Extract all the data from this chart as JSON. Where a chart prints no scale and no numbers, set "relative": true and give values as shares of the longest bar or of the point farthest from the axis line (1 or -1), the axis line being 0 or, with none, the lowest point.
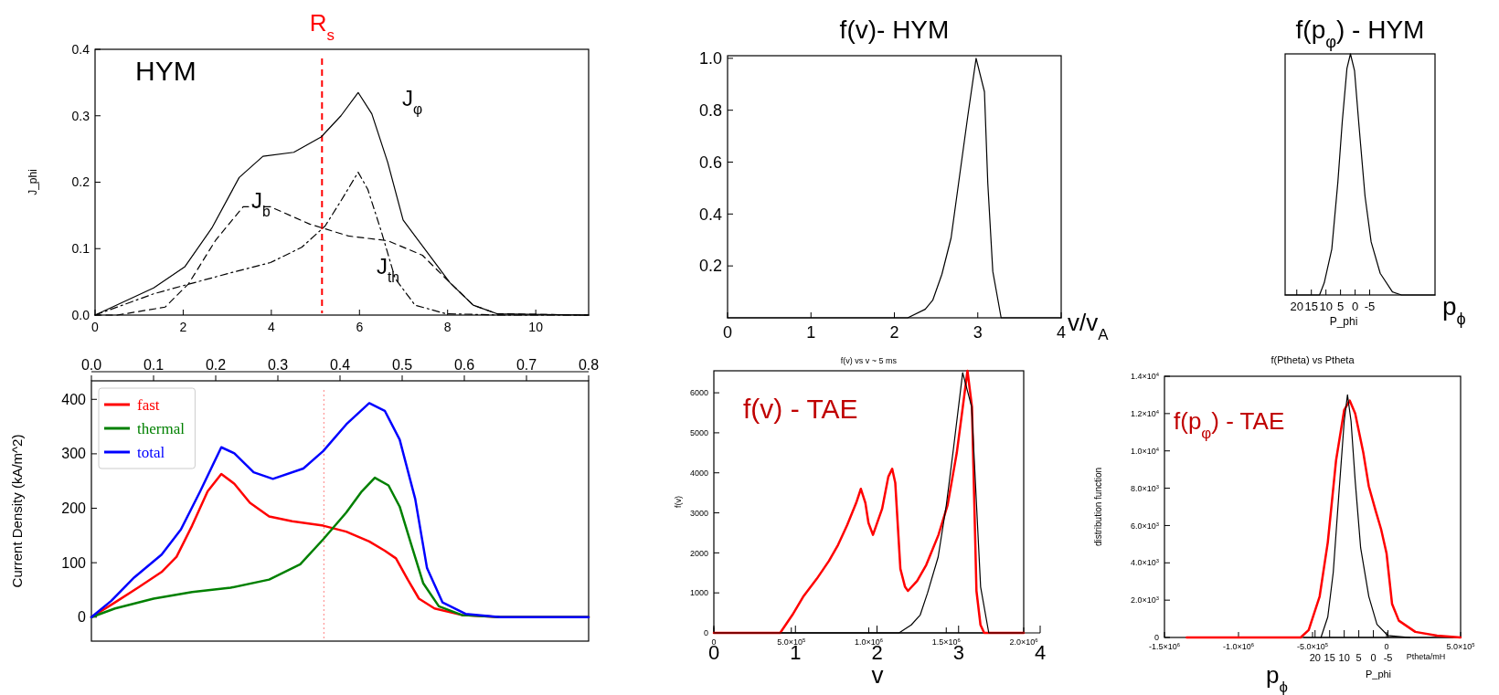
{
  "chart_data": [
    {
      "type": "line",
      "annotations": [
        "HYM"
      ],
      "ylabel": "J_phi",
      "xlim": [
        0,
        11.2
      ],
      "xticks": [
        0,
        2,
        4,
        6,
        8,
        10
      ],
      "ylim": [
        0,
        0.4
      ],
      "yticks": [
        {
          "value": 0,
          "label": "0.0"
        },
        {
          "value": 0.1,
          "label": "0.1"
        },
        {
          "value": 0.2,
          "label": "0.2"
        },
        {
          "value": 0.3,
          "label": "0.3"
        },
        {
          "value": 0.4,
          "label": "0.4"
        }
      ],
      "grid": false,
      "legend": false,
      "ref_lines": [
        {
          "axis": "x",
          "value": 5.15,
          "label": "R$_{s}$",
          "color": "#ff0000",
          "line_style": "dashed"
        }
      ],
      "series": [
        {
          "name": "J$_{φ}$",
          "color": "#000000",
          "line_style": "solid",
          "x": [
            0,
            1.33,
            2.04,
            2.65,
            3.27,
            3.81,
            4.51,
            5.13,
            5.58,
            5.97,
            6.28,
            6.64,
            6.99,
            7.52,
            8.05,
            8.58,
            9.12,
            11.2
          ],
          "values": [
            0,
            0.041,
            0.073,
            0.131,
            0.207,
            0.239,
            0.245,
            0.268,
            0.3,
            0.335,
            0.303,
            0.23,
            0.143,
            0.096,
            0.049,
            0.015,
            0.002,
            0
          ]
        },
        {
          "name": "J$_{b}$",
          "color": "#000000",
          "line_style": "dashed",
          "x": [
            0,
            0.5,
            1.59,
            2.12,
            2.74,
            3.36,
            3.98,
            4.87,
            5.75,
            6.64,
            7.43,
            8.05,
            8.58,
            9.12,
            11.2
          ],
          "values": [
            0,
            0,
            0.012,
            0.047,
            0.113,
            0.163,
            0.163,
            0.137,
            0.119,
            0.112,
            0.09,
            0.049,
            0.015,
            0.002,
            0
          ]
        },
        {
          "name": "J$_{th}$",
          "color": "#000000",
          "line_style": "dashdot",
          "x": [
            0,
            1.33,
            2.04,
            3.1,
            3.98,
            4.69,
            5.22,
            5.58,
            5.97,
            6.19,
            6.5,
            6.81,
            7.26,
            7.96,
            9.3,
            11.2
          ],
          "values": [
            0,
            0.032,
            0.045,
            0.064,
            0.079,
            0.102,
            0.134,
            0.172,
            0.215,
            0.189,
            0.125,
            0.055,
            0.015,
            0.002,
            0,
            0
          ]
        }
      ]
    },
    {
      "type": "line",
      "ylabel": "Current Density (kA/m^2)",
      "xlim": [
        0,
        0.8
      ],
      "xticks": [
        {
          "value": 0,
          "label": "0.0"
        },
        {
          "value": 0.1,
          "label": "0.1"
        },
        {
          "value": 0.2,
          "label": "0.2"
        },
        {
          "value": 0.3,
          "label": "0.3"
        },
        {
          "value": 0.4,
          "label": "0.4"
        },
        {
          "value": 0.5,
          "label": "0.5"
        },
        {
          "value": 0.6,
          "label": "0.6"
        },
        {
          "value": 0.7,
          "label": "0.7"
        },
        {
          "value": 0.8,
          "label": "0.8"
        }
      ],
      "ylim": [
        -44,
        434
      ],
      "yticks": [
        0,
        100,
        200,
        300,
        400
      ],
      "grid": false,
      "legend": "top left",
      "ref_lines": [
        {
          "axis": "x",
          "value": 0.374,
          "color": "#ff8080",
          "line_style": "dotted"
        }
      ],
      "series": [
        {
          "name": "fast",
          "color": "#ff0000",
          "x": [
            0,
            0.038,
            0.076,
            0.113,
            0.137,
            0.162,
            0.187,
            0.209,
            0.23,
            0.255,
            0.286,
            0.323,
            0.373,
            0.41,
            0.447,
            0.472,
            0.49,
            0.509,
            0.527,
            0.552,
            0.596,
            0.658,
            0.8
          ],
          "values": [
            0,
            27,
            55,
            83,
            111,
            168,
            231,
            263,
            245,
            210,
            185,
            176,
            168,
            157,
            139,
            122,
            108,
            69,
            34,
            16,
            4,
            0,
            0
          ]
        },
        {
          "name": "thermal",
          "color": "#008000",
          "x": [
            0,
            0.038,
            0.1,
            0.162,
            0.224,
            0.286,
            0.336,
            0.373,
            0.41,
            0.435,
            0.456,
            0.478,
            0.496,
            0.515,
            0.534,
            0.559,
            0.596,
            0.658,
            0.8
          ],
          "values": [
            0,
            16,
            34,
            46,
            54,
            69,
            97,
            143,
            192,
            231,
            256,
            242,
            203,
            132,
            62,
            20,
            4,
            0,
            0
          ]
        },
        {
          "name": "total",
          "color": "#0000ff",
          "x": [
            0,
            0.032,
            0.069,
            0.113,
            0.144,
            0.175,
            0.209,
            0.23,
            0.261,
            0.292,
            0.341,
            0.373,
            0.41,
            0.447,
            0.472,
            0.496,
            0.521,
            0.54,
            0.565,
            0.602,
            0.658,
            0.8
          ],
          "values": [
            0,
            30,
            73,
            115,
            161,
            231,
            312,
            301,
            266,
            254,
            273,
            305,
            354,
            393,
            379,
            326,
            217,
            90,
            27,
            6,
            0,
            0
          ]
        }
      ]
    },
    {
      "type": "line",
      "title": "f(v)- HYM",
      "xlabel": "v/v$_{A}$",
      "xlim": [
        0,
        4
      ],
      "xticks": [
        0,
        1,
        2,
        3,
        4
      ],
      "ylim": [
        0,
        1.01
      ],
      "yticks": [
        {
          "value": 0.2,
          "label": "0.2"
        },
        {
          "value": 0.4,
          "label": "0.4"
        },
        {
          "value": 0.6,
          "label": "0.6"
        },
        {
          "value": 0.8,
          "label": "0.8"
        },
        {
          "value": 1,
          "label": "1.0"
        }
      ],
      "grid": false,
      "legend": false,
      "series": [
        {
          "color": "#000000",
          "x": [
            0,
            2.16,
            2.37,
            2.46,
            2.57,
            2.68,
            2.77,
            2.88,
            2.98,
            3.08,
            3.12,
            3.18,
            3.28,
            4
          ],
          "values": [
            0,
            0,
            0.033,
            0.068,
            0.168,
            0.308,
            0.519,
            0.777,
            1,
            0.871,
            0.519,
            0.179,
            0,
            0
          ]
        }
      ]
    },
    {
      "type": "line",
      "title": "f(v) vs v ~ 5 ms",
      "ylabel": "f(v)",
      "x2label": "v",
      "annotations": [
        "f(v) - TAE"
      ],
      "xlim": [
        0,
        2000000
      ],
      "xticks": [
        0,
        {
          "value": 500000,
          "label": "5.0×10$^{5}$"
        },
        {
          "value": 1000000,
          "label": "1.0×10$^{6}$"
        },
        {
          "value": 1500000,
          "label": "1.5×10$^{6}$"
        },
        {
          "value": 2000000,
          "label": "2.0×10$^{6}$"
        }
      ],
      "x2lim": [
        0,
        4
      ],
      "x2ticks": [
        0,
        1,
        2,
        3,
        4
      ],
      "ylim": [
        0,
        6550
      ],
      "yticks": [
        0,
        1000,
        2000,
        3000,
        4000,
        5000,
        6000
      ],
      "grid": false,
      "legend": false,
      "series": [
        {
          "color": "#ff0000",
          "x": [
            0,
            428000,
            507000,
            576000,
            664000,
            743000,
            802000,
            861000,
            919000,
            949000,
            978000,
            998000,
            1027000,
            1086000,
            1126000,
            1151000,
            1171000,
            1204000,
            1234000,
            1253000,
            1312000,
            1371000,
            1450000,
            1509000,
            1568000,
            1607000,
            1637000,
            1666000,
            1695000,
            1721000,
            1745000,
            2000000
          ],
          "values": [
            0,
            0,
            450,
            900,
            1350,
            1800,
            2200,
            2700,
            3250,
            3600,
            3250,
            2750,
            2450,
            3100,
            3900,
            4100,
            3750,
            1600,
            1150,
            1050,
            1300,
            1700,
            2450,
            3200,
            4500,
            5650,
            6550,
            5650,
            1050,
            200,
            0,
            0
          ]
        },
        {
          "color": "#000000",
          "axis": "x2",
          "x": [
            0,
            2.27,
            2.42,
            2.53,
            2.62,
            2.75,
            2.85,
            2.94,
            3.05,
            3.16,
            3.27,
            3.37,
            3.8
          ],
          "values": [
            0,
            0,
            200,
            450,
            1000,
            1900,
            3200,
            4650,
            6500,
            5650,
            1150,
            0,
            0
          ]
        }
      ]
    },
    {
      "type": "line",
      "title": "f(p$_{φ}$) - HYM",
      "xlabel": "P_phi",
      "annotations": [
        "p$_{ϕ}$"
      ],
      "relative": true,
      "xlim": [
        24,
        -27.4
      ],
      "xticks": [
        -5,
        0,
        5,
        10,
        15,
        20
      ],
      "grid": false,
      "legend": false,
      "series": [
        {
          "color": "#000000",
          "x": [
            24,
            12.2,
            10.6,
            8,
            5.9,
            4.4,
            2.8,
            1.6,
            0.2,
            -1.35,
            -3.4,
            -5.5,
            -8.6,
            -12.8,
            -15.9,
            -27.4
          ],
          "values": [
            0,
            0,
            0.05,
            0.19,
            0.47,
            0.72,
            0.94,
            1,
            0.93,
            0.7,
            0.41,
            0.22,
            0.09,
            0.013,
            0,
            0
          ]
        }
      ]
    },
    {
      "type": "line",
      "title": "f(Ptheta) vs Ptheta",
      "ylabel": "distribution function",
      "xlabel": "Ptheta/mH",
      "x2label": "P_phi",
      "annotations": [
        "f(p$_{φ}$) - TAE",
        "p$_{ϕ}$"
      ],
      "xlim": [
        -1500000,
        500000
      ],
      "xticks": [
        {
          "value": -1500000,
          "label": "-1.5×10$^{6}$"
        },
        {
          "value": -1000000,
          "label": "-1.0×10$^{6}$"
        },
        {
          "value": -500000,
          "label": "-5.0×10$^{5}$"
        },
        0,
        {
          "value": 500000,
          "label": "5.0×10$^{5}$"
        }
      ],
      "x2lim": [
        24,
        -27.4
      ],
      "x2ticks": [
        -5,
        0,
        5,
        10,
        15,
        20
      ],
      "ylim": [
        0,
        14000
      ],
      "yticks": [
        0,
        {
          "value": 2000,
          "label": "2.0×10$^{3}$"
        },
        {
          "value": 4000,
          "label": "4.0×10$^{3}$"
        },
        {
          "value": 6000,
          "label": "6.0×10$^{3}$"
        },
        {
          "value": 8000,
          "label": "8.0×10$^{3}$"
        },
        {
          "value": 10000,
          "label": "1.0×10$^{4}$"
        },
        {
          "value": 12000,
          "label": "1.2×10$^{4}$"
        },
        {
          "value": 14000,
          "label": "1.4×10$^{4}$"
        }
      ],
      "grid": false,
      "legend": false,
      "series": [
        {
          "color": "#ff0000",
          "x": [
            -1350000,
            -580000,
            -526000,
            -452000,
            -397000,
            -341000,
            -286000,
            -249000,
            -212000,
            -157000,
            -120000,
            -74000,
            -37000,
            0,
            37000,
            83000,
            194000,
            341000,
            500000
          ],
          "values": [
            0,
            0,
            400,
            2200,
            5100,
            9500,
            12200,
            12700,
            12000,
            9900,
            8100,
            6800,
            5800,
            4500,
            1800,
            900,
            300,
            100,
            0
          ]
        },
        {
          "color": "#000000",
          "x": [
            -443000,
            -397000,
            -360000,
            -323000,
            -286000,
            -264000,
            -240000,
            -212000,
            -175000,
            -120000,
            -65000,
            9000,
            157000
          ],
          "values": [
            0,
            1100,
            3500,
            7600,
            11600,
            13000,
            11600,
            8400,
            4800,
            2200,
            700,
            100,
            0
          ]
        }
      ]
    }
  ]
}
